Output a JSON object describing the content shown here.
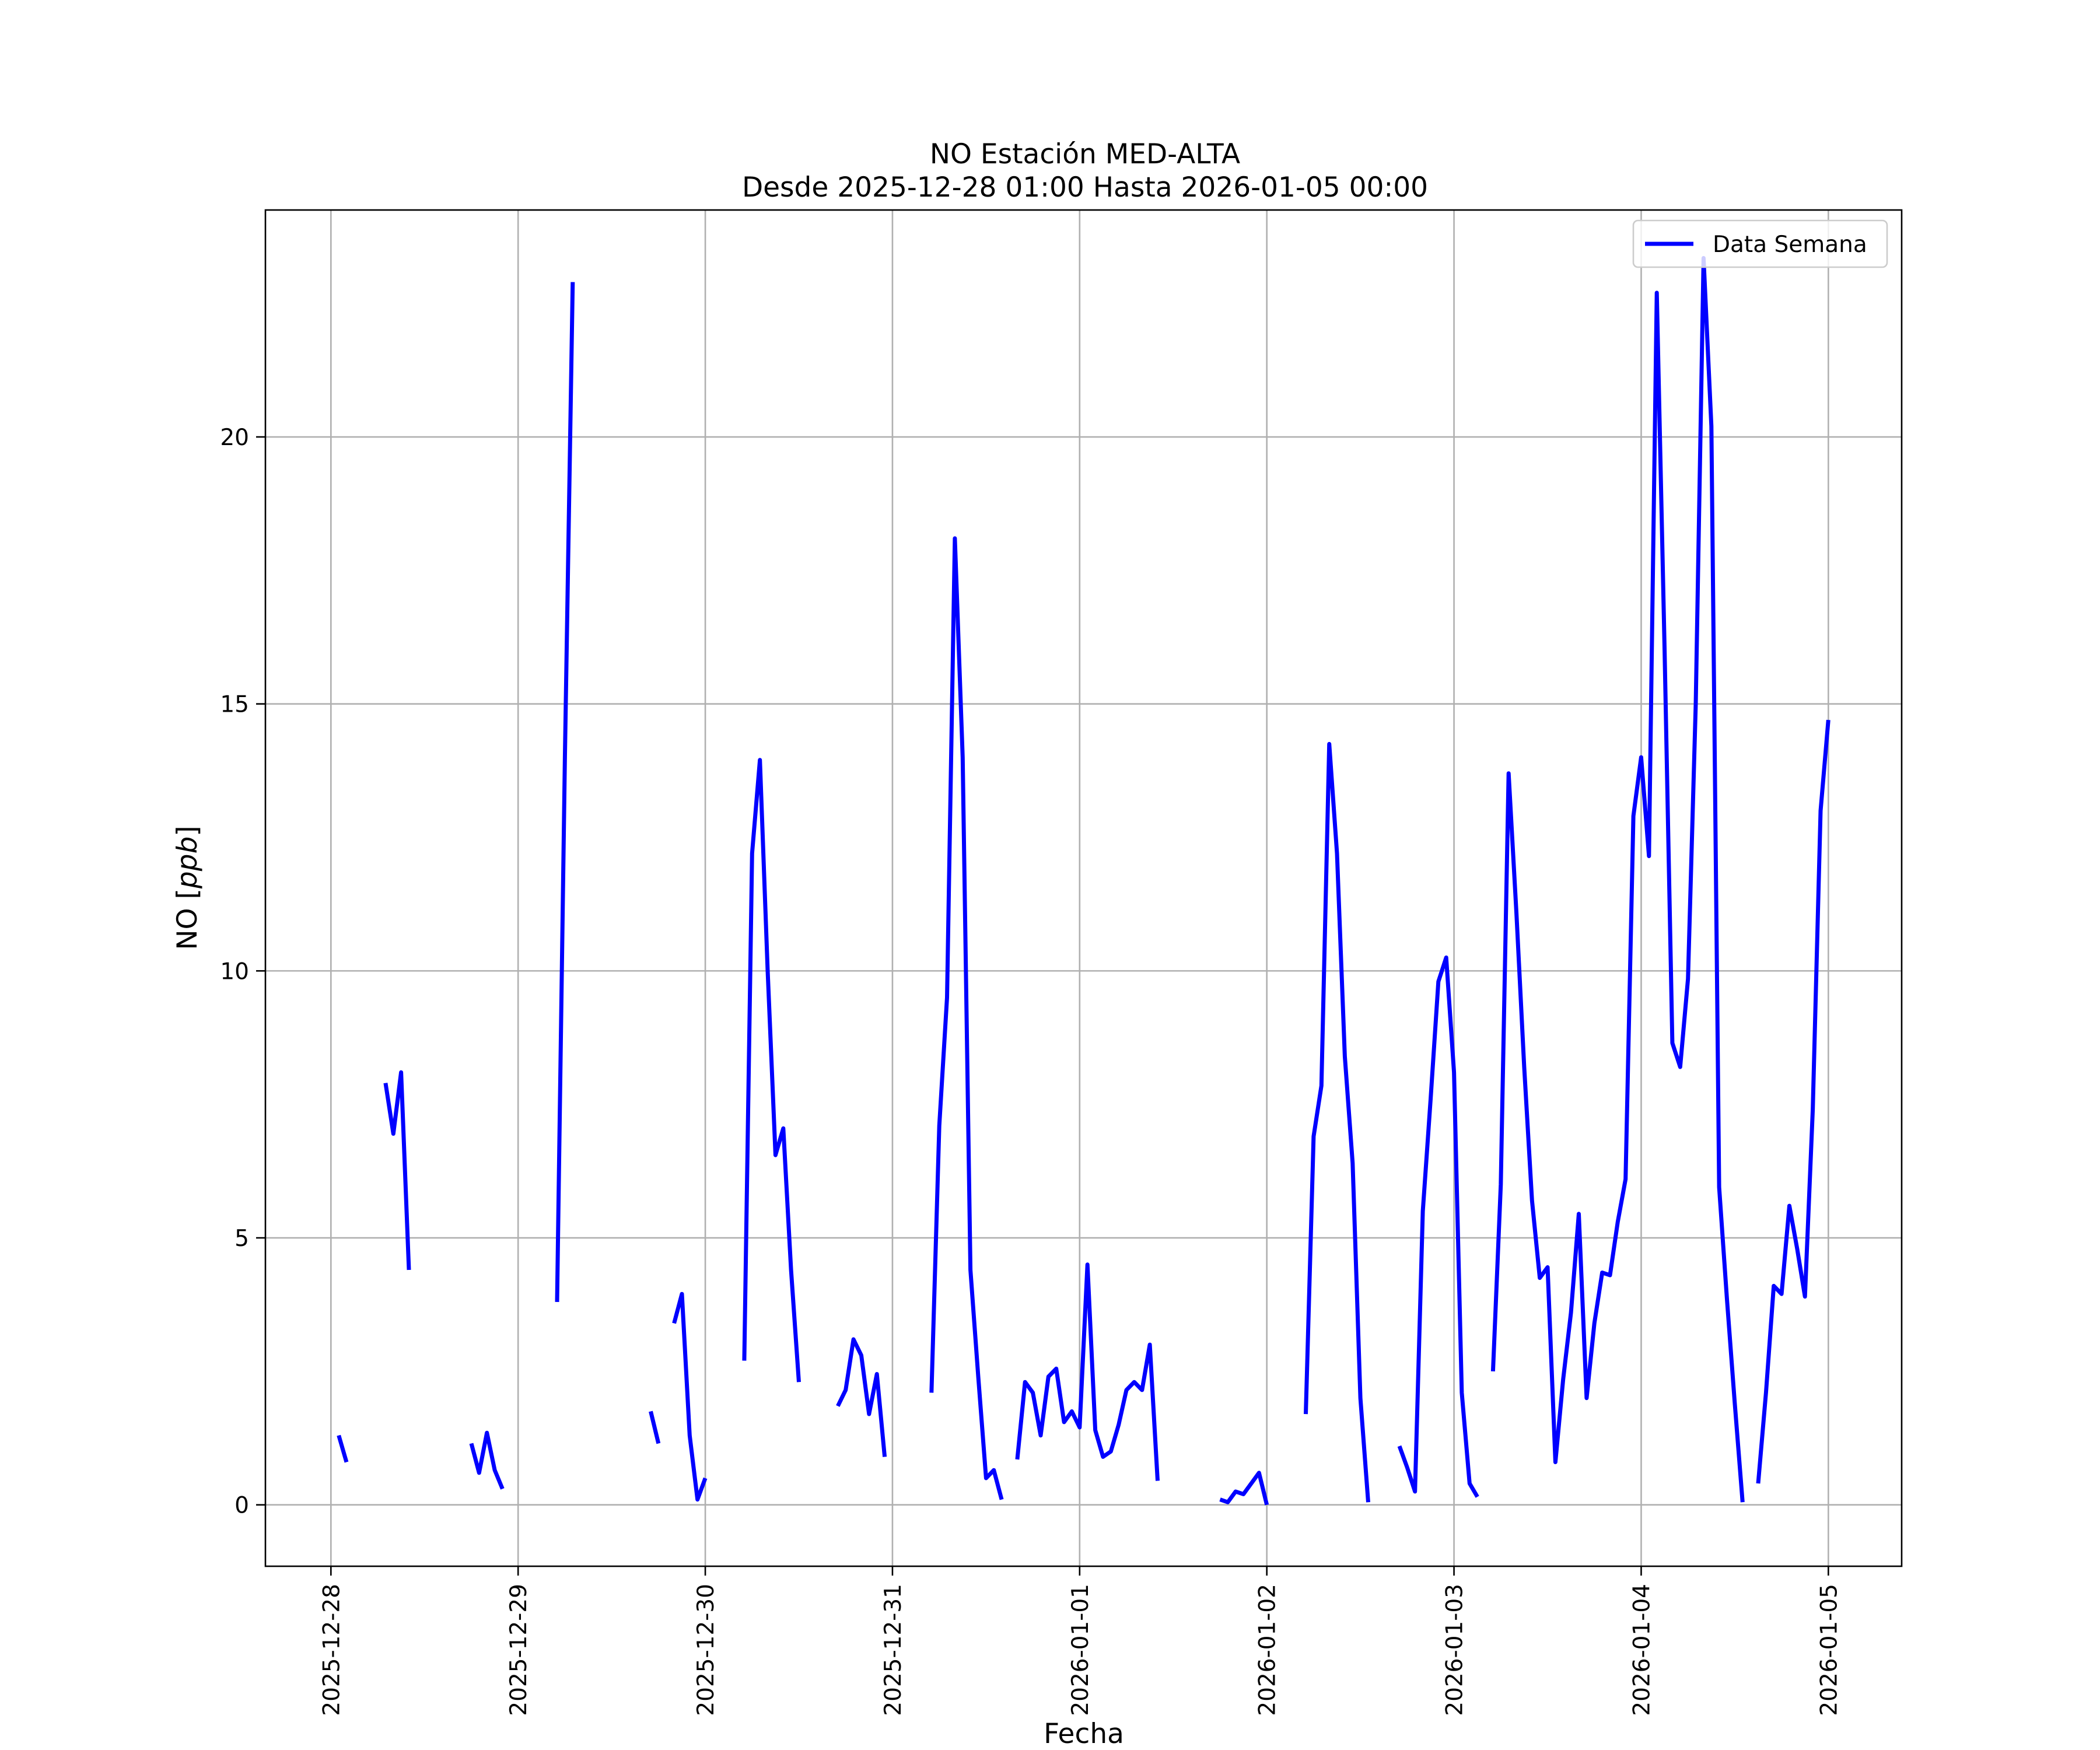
{
  "chart_data": {
    "type": "line",
    "title": "NO Estación MED-ALTA",
    "subtitle": "Desde 2025-12-28 01:00 Hasta 2026-01-05 00:00",
    "xlabel": "Fecha",
    "ylabel": "NO [ppb]",
    "ylabel_prefix": "NO [",
    "ylabel_unit": "ppb",
    "ylabel_suffix": "]",
    "x_ticks": [
      "2025-12-28",
      "2025-12-29",
      "2025-12-30",
      "2025-12-31",
      "2026-01-01",
      "2026-01-02",
      "2026-01-03",
      "2026-01-04",
      "2026-01-05"
    ],
    "x_range": [
      "2025-12-27 15:36",
      "2026-01-05 09:24"
    ],
    "y_ticks": [
      0,
      5,
      10,
      15,
      20
    ],
    "ylim": [
      -1.15,
      24.25
    ],
    "grid": true,
    "legend_position": "upper right",
    "series": [
      {
        "name": "Data Semana",
        "color": "#0000ff",
        "segments": [
          [
            [
              "2025-12-28 01:00",
              1.3
            ],
            [
              "2025-12-28 02:00",
              0.8
            ]
          ],
          [
            [
              "2025-12-28 07:00",
              7.9
            ],
            [
              "2025-12-28 08:00",
              6.95
            ],
            [
              "2025-12-28 09:00",
              8.1
            ],
            [
              "2025-12-28 10:00",
              4.4
            ]
          ],
          [
            [
              "2025-12-28 18:00",
              1.15
            ],
            [
              "2025-12-28 19:00",
              0.6
            ],
            [
              "2025-12-28 20:00",
              1.35
            ],
            [
              "2025-12-28 21:00",
              0.65
            ],
            [
              "2025-12-28 22:00",
              0.3
            ]
          ],
          [
            [
              "2025-12-29 05:00",
              3.8
            ],
            [
              "2025-12-29 06:00",
              14.0
            ],
            [
              "2025-12-29 07:00",
              22.9
            ]
          ],
          [
            [
              "2025-12-29 17:00",
              1.75
            ],
            [
              "2025-12-29 18:00",
              1.15
            ]
          ],
          [
            [
              "2025-12-29 20:00",
              3.4
            ],
            [
              "2025-12-29 21:00",
              3.95
            ],
            [
              "2025-12-29 22:00",
              1.3
            ],
            [
              "2025-12-29 23:00",
              0.1
            ],
            [
              "2025-12-30 00:00",
              0.5
            ]
          ],
          [
            [
              "2025-12-30 05:00",
              2.7
            ],
            [
              "2025-12-30 06:00",
              12.2
            ],
            [
              "2025-12-30 07:00",
              13.95
            ],
            [
              "2025-12-30 08:00",
              10.0
            ],
            [
              "2025-12-30 09:00",
              6.55
            ],
            [
              "2025-12-30 10:00",
              7.05
            ],
            [
              "2025-12-30 11:00",
              4.4
            ],
            [
              "2025-12-30 12:00",
              2.3
            ]
          ],
          [
            [
              "2025-12-30 17:00",
              1.85
            ],
            [
              "2025-12-30 18:00",
              2.15
            ],
            [
              "2025-12-30 19:00",
              3.1
            ],
            [
              "2025-12-30 20:00",
              2.8
            ],
            [
              "2025-12-30 21:00",
              1.7
            ],
            [
              "2025-12-30 22:00",
              2.45
            ],
            [
              "2025-12-30 23:00",
              0.9
            ]
          ],
          [
            [
              "2025-12-31 05:00",
              2.1
            ],
            [
              "2025-12-31 06:00",
              7.1
            ],
            [
              "2025-12-31 07:00",
              9.5
            ],
            [
              "2025-12-31 08:00",
              18.1
            ],
            [
              "2025-12-31 09:00",
              14.0
            ],
            [
              "2025-12-31 10:00",
              4.4
            ],
            [
              "2025-12-31 11:00",
              2.4
            ],
            [
              "2025-12-31 12:00",
              0.5
            ],
            [
              "2025-12-31 13:00",
              0.65
            ],
            [
              "2025-12-31 14:00",
              0.1
            ]
          ],
          [
            [
              "2025-12-31 16:00",
              0.85
            ],
            [
              "2025-12-31 17:00",
              2.3
            ],
            [
              "2025-12-31 18:00",
              2.1
            ],
            [
              "2025-12-31 19:00",
              1.3
            ],
            [
              "2025-12-31 20:00",
              2.4
            ],
            [
              "2025-12-31 21:00",
              2.55
            ],
            [
              "2025-12-31 22:00",
              1.55
            ],
            [
              "2025-12-31 23:00",
              1.75
            ],
            [
              "2026-01-01 00:00",
              1.45
            ],
            [
              "2026-01-01 01:00",
              4.5
            ],
            [
              "2026-01-01 02:00",
              1.4
            ],
            [
              "2026-01-01 03:00",
              0.9
            ],
            [
              "2026-01-01 04:00",
              1.0
            ],
            [
              "2026-01-01 05:00",
              1.5
            ],
            [
              "2026-01-01 06:00",
              2.15
            ],
            [
              "2026-01-01 07:00",
              2.3
            ],
            [
              "2026-01-01 08:00",
              2.15
            ],
            [
              "2026-01-01 09:00",
              3.0
            ],
            [
              "2026-01-01 10:00",
              0.45
            ]
          ],
          [
            [
              "2026-01-01 18:00",
              0.1
            ],
            [
              "2026-01-01 19:00",
              0.05
            ],
            [
              "2026-01-01 20:00",
              0.25
            ],
            [
              "2026-01-01 21:00",
              0.2
            ],
            [
              "2026-01-01 22:00",
              0.4
            ],
            [
              "2026-01-01 23:00",
              0.6
            ],
            [
              "2026-01-02 00:00",
              0.0
            ]
          ],
          [
            [
              "2026-01-02 05:00",
              1.7
            ],
            [
              "2026-01-02 06:00",
              6.9
            ],
            [
              "2026-01-02 07:00",
              7.85
            ],
            [
              "2026-01-02 08:00",
              14.25
            ],
            [
              "2026-01-02 09:00",
              12.2
            ],
            [
              "2026-01-02 10:00",
              8.4
            ],
            [
              "2026-01-02 11:00",
              6.4
            ],
            [
              "2026-01-02 12:00",
              2.0
            ],
            [
              "2026-01-02 13:00",
              0.05
            ]
          ],
          [
            [
              "2026-01-02 17:00",
              1.1
            ],
            [
              "2026-01-02 18:00",
              0.7
            ],
            [
              "2026-01-02 19:00",
              0.25
            ],
            [
              "2026-01-02 20:00",
              5.5
            ],
            [
              "2026-01-02 21:00",
              7.6
            ],
            [
              "2026-01-02 22:00",
              9.8
            ],
            [
              "2026-01-02 23:00",
              10.25
            ],
            [
              "2026-01-03 00:00",
              8.1
            ],
            [
              "2026-01-03 01:00",
              2.1
            ],
            [
              "2026-01-03 02:00",
              0.4
            ],
            [
              "2026-01-03 03:00",
              0.15
            ]
          ],
          [
            [
              "2026-01-03 05:00",
              2.5
            ],
            [
              "2026-01-03 06:00",
              6.0
            ],
            [
              "2026-01-03 07:00",
              13.7
            ],
            [
              "2026-01-03 08:00",
              11.1
            ],
            [
              "2026-01-03 09:00",
              8.2
            ],
            [
              "2026-01-03 10:00",
              5.7
            ],
            [
              "2026-01-03 11:00",
              4.25
            ],
            [
              "2026-01-03 12:00",
              4.45
            ],
            [
              "2026-01-03 13:00",
              0.8
            ],
            [
              "2026-01-03 14:00",
              2.35
            ],
            [
              "2026-01-03 15:00",
              3.6
            ],
            [
              "2026-01-03 16:00",
              5.45
            ],
            [
              "2026-01-03 17:00",
              2.0
            ],
            [
              "2026-01-03 18:00",
              3.4
            ],
            [
              "2026-01-03 19:00",
              4.35
            ],
            [
              "2026-01-03 20:00",
              4.3
            ],
            [
              "2026-01-03 21:00",
              5.3
            ],
            [
              "2026-01-03 22:00",
              6.1
            ],
            [
              "2026-01-03 23:00",
              12.9
            ],
            [
              "2026-01-04 00:00",
              14.0
            ],
            [
              "2026-01-04 01:00",
              12.15
            ],
            [
              "2026-01-04 02:00",
              22.7
            ],
            [
              "2026-01-04 03:00",
              16.0
            ],
            [
              "2026-01-04 04:00",
              8.65
            ],
            [
              "2026-01-04 05:00",
              8.2
            ],
            [
              "2026-01-04 06:00",
              9.85
            ],
            [
              "2026-01-04 07:00",
              15.0
            ],
            [
              "2026-01-04 08:00",
              23.35
            ],
            [
              "2026-01-04 09:00",
              20.2
            ],
            [
              "2026-01-04 10:00",
              5.95
            ],
            [
              "2026-01-04 11:00",
              3.85
            ],
            [
              "2026-01-04 12:00",
              1.9
            ],
            [
              "2026-01-04 13:00",
              0.05
            ]
          ],
          [
            [
              "2026-01-04 15:00",
              0.4
            ],
            [
              "2026-01-04 16:00",
              2.1
            ],
            [
              "2026-01-04 17:00",
              4.1
            ],
            [
              "2026-01-04 18:00",
              3.95
            ],
            [
              "2026-01-04 19:00",
              5.6
            ],
            [
              "2026-01-04 20:00",
              4.8
            ],
            [
              "2026-01-04 21:00",
              3.9
            ],
            [
              "2026-01-04 22:00",
              7.4
            ],
            [
              "2026-01-04 23:00",
              13.0
            ],
            [
              "2026-01-05 00:00",
              14.7
            ]
          ]
        ]
      }
    ]
  }
}
